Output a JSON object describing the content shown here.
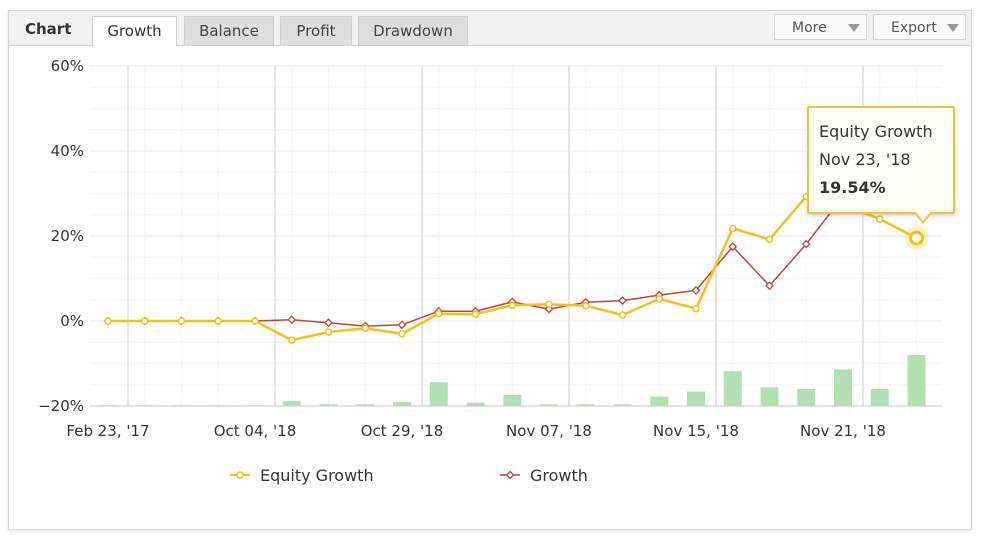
{
  "header": {
    "chart_label": "Chart",
    "tabs": [
      {
        "label": "Growth",
        "active": true
      },
      {
        "label": "Balance",
        "active": false
      },
      {
        "label": "Profit",
        "active": false
      },
      {
        "label": "Drawdown",
        "active": false
      }
    ],
    "more_label": "More",
    "export_label": "Export"
  },
  "tooltip": {
    "series": "Equity Growth",
    "date": "Nov 23, '18",
    "value": "19.54%"
  },
  "colors": {
    "equity": "#f2c21b",
    "growth": "#c9403a",
    "bars": "#b3e0b3",
    "grid": "#e8e8e8"
  },
  "chart_data": {
    "type": "line",
    "title": "",
    "xlabel": "",
    "ylabel": "",
    "ylim": [
      -20,
      60
    ],
    "yticks": [
      -20,
      0,
      20,
      40,
      60
    ],
    "ytick_labels": [
      "−20%",
      "0%",
      "20%",
      "40%",
      "60%"
    ],
    "xtick_labels": [
      "Feb 23, '17",
      "Oct 04, '18",
      "Oct 29, '18",
      "Nov 07, '18",
      "Nov 15, '18",
      "Nov 21, '18"
    ],
    "xtick_index": [
      0,
      4,
      8,
      12,
      16,
      20
    ],
    "n_points": 23,
    "grid": true,
    "legend_position": "bottom",
    "series": [
      {
        "name": "Equity Growth",
        "marker": "circle",
        "values": [
          0,
          0,
          0,
          0,
          0,
          -4.5,
          -2.6,
          -1.7,
          -3.0,
          1.7,
          1.6,
          3.7,
          3.9,
          3.6,
          1.4,
          5.2,
          2.9,
          21.8,
          19.2,
          29.3,
          27.4,
          24.0,
          19.54
        ]
      },
      {
        "name": "Growth",
        "marker": "diamond",
        "values": [
          0,
          0,
          0,
          0,
          0,
          0.3,
          -0.4,
          -1.2,
          -0.9,
          2.3,
          2.3,
          4.5,
          2.8,
          4.4,
          4.8,
          6.1,
          7.2,
          17.5,
          8.3,
          18.1,
          29.3,
          33.0,
          41.0
        ]
      },
      {
        "name": "",
        "type": "bar",
        "values": [
          0,
          0,
          0,
          0,
          0,
          1.2,
          0.4,
          0.4,
          0.9,
          5.6,
          0.8,
          2.6,
          0.4,
          0.4,
          0.4,
          2.2,
          3.4,
          8.2,
          4.4,
          4.0,
          8.6,
          4.0,
          12.0
        ]
      }
    ]
  }
}
